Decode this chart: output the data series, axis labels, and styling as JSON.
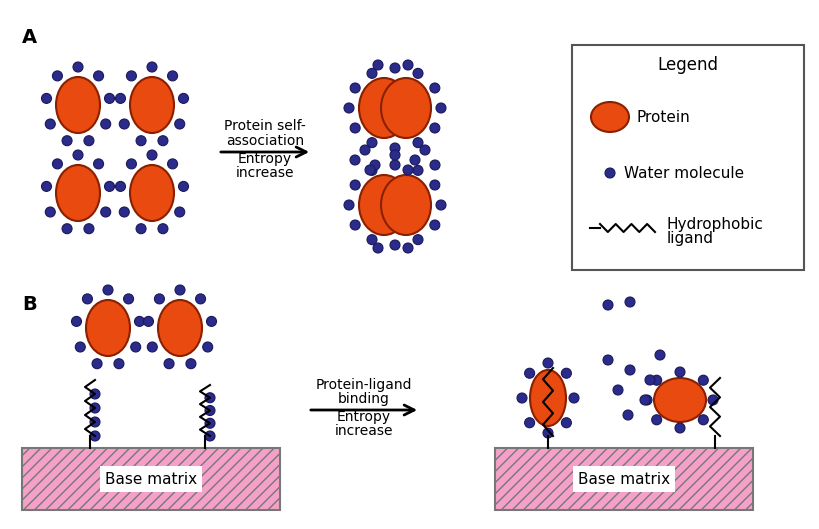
{
  "protein_color": "#E84A10",
  "protein_edge_color": "#8B2000",
  "water_color": "#2B2B8B",
  "water_edge_color": "#1A1A5B",
  "base_matrix_color": "#F5A0C8",
  "base_matrix_hatch": "///",
  "base_matrix_edge": "#777777",
  "label_A": "A",
  "label_B": "B",
  "text_arrow1_line1": "Protein self-",
  "text_arrow1_line2": "association",
  "text_arrow1_line3": "Entropy",
  "text_arrow1_line4": "increase",
  "text_arrow2_line1": "Protein-ligand",
  "text_arrow2_line2": "binding",
  "text_arrow2_line3": "Entropy",
  "text_arrow2_line4": "increase",
  "legend_title": "Legend",
  "legend_protein": "Protein",
  "legend_water": "Water molecule",
  "legend_ligand_line1": "Hydrophobic",
  "legend_ligand_line2": "ligand",
  "base_matrix_label": "Base matrix"
}
